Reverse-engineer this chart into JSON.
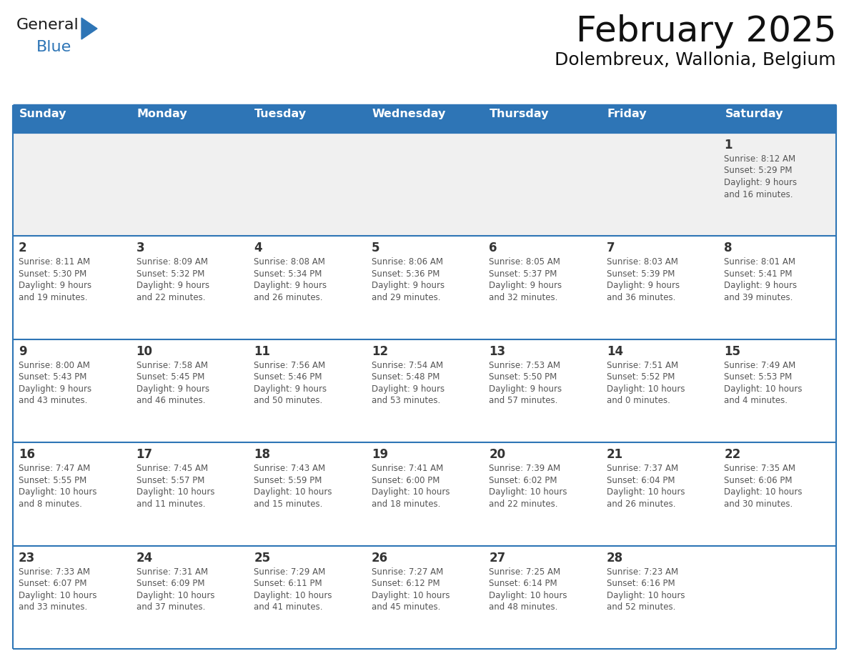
{
  "title": "February 2025",
  "subtitle": "Dolembreux, Wallonia, Belgium",
  "header_bg": "#2E75B6",
  "header_text_color": "#FFFFFF",
  "row_bg_gray": "#F0F0F0",
  "row_bg_white": "#FFFFFF",
  "border_color": "#2E75B6",
  "day_num_color": "#333333",
  "text_color": "#555555",
  "days_of_week": [
    "Sunday",
    "Monday",
    "Tuesday",
    "Wednesday",
    "Thursday",
    "Friday",
    "Saturday"
  ],
  "logo_general_color": "#1a1a1a",
  "logo_blue_color": "#2E75B6",
  "calendar_data": [
    [
      null,
      null,
      null,
      null,
      null,
      null,
      {
        "day": 1,
        "sunrise": "8:12 AM",
        "sunset": "5:29 PM",
        "daylight": "9 hours and 16 minutes."
      }
    ],
    [
      {
        "day": 2,
        "sunrise": "8:11 AM",
        "sunset": "5:30 PM",
        "daylight": "9 hours and 19 minutes."
      },
      {
        "day": 3,
        "sunrise": "8:09 AM",
        "sunset": "5:32 PM",
        "daylight": "9 hours and 22 minutes."
      },
      {
        "day": 4,
        "sunrise": "8:08 AM",
        "sunset": "5:34 PM",
        "daylight": "9 hours and 26 minutes."
      },
      {
        "day": 5,
        "sunrise": "8:06 AM",
        "sunset": "5:36 PM",
        "daylight": "9 hours and 29 minutes."
      },
      {
        "day": 6,
        "sunrise": "8:05 AM",
        "sunset": "5:37 PM",
        "daylight": "9 hours and 32 minutes."
      },
      {
        "day": 7,
        "sunrise": "8:03 AM",
        "sunset": "5:39 PM",
        "daylight": "9 hours and 36 minutes."
      },
      {
        "day": 8,
        "sunrise": "8:01 AM",
        "sunset": "5:41 PM",
        "daylight": "9 hours and 39 minutes."
      }
    ],
    [
      {
        "day": 9,
        "sunrise": "8:00 AM",
        "sunset": "5:43 PM",
        "daylight": "9 hours and 43 minutes."
      },
      {
        "day": 10,
        "sunrise": "7:58 AM",
        "sunset": "5:45 PM",
        "daylight": "9 hours and 46 minutes."
      },
      {
        "day": 11,
        "sunrise": "7:56 AM",
        "sunset": "5:46 PM",
        "daylight": "9 hours and 50 minutes."
      },
      {
        "day": 12,
        "sunrise": "7:54 AM",
        "sunset": "5:48 PM",
        "daylight": "9 hours and 53 minutes."
      },
      {
        "day": 13,
        "sunrise": "7:53 AM",
        "sunset": "5:50 PM",
        "daylight": "9 hours and 57 minutes."
      },
      {
        "day": 14,
        "sunrise": "7:51 AM",
        "sunset": "5:52 PM",
        "daylight": "10 hours and 0 minutes."
      },
      {
        "day": 15,
        "sunrise": "7:49 AM",
        "sunset": "5:53 PM",
        "daylight": "10 hours and 4 minutes."
      }
    ],
    [
      {
        "day": 16,
        "sunrise": "7:47 AM",
        "sunset": "5:55 PM",
        "daylight": "10 hours and 8 minutes."
      },
      {
        "day": 17,
        "sunrise": "7:45 AM",
        "sunset": "5:57 PM",
        "daylight": "10 hours and 11 minutes."
      },
      {
        "day": 18,
        "sunrise": "7:43 AM",
        "sunset": "5:59 PM",
        "daylight": "10 hours and 15 minutes."
      },
      {
        "day": 19,
        "sunrise": "7:41 AM",
        "sunset": "6:00 PM",
        "daylight": "10 hours and 18 minutes."
      },
      {
        "day": 20,
        "sunrise": "7:39 AM",
        "sunset": "6:02 PM",
        "daylight": "10 hours and 22 minutes."
      },
      {
        "day": 21,
        "sunrise": "7:37 AM",
        "sunset": "6:04 PM",
        "daylight": "10 hours and 26 minutes."
      },
      {
        "day": 22,
        "sunrise": "7:35 AM",
        "sunset": "6:06 PM",
        "daylight": "10 hours and 30 minutes."
      }
    ],
    [
      {
        "day": 23,
        "sunrise": "7:33 AM",
        "sunset": "6:07 PM",
        "daylight": "10 hours and 33 minutes."
      },
      {
        "day": 24,
        "sunrise": "7:31 AM",
        "sunset": "6:09 PM",
        "daylight": "10 hours and 37 minutes."
      },
      {
        "day": 25,
        "sunrise": "7:29 AM",
        "sunset": "6:11 PM",
        "daylight": "10 hours and 41 minutes."
      },
      {
        "day": 26,
        "sunrise": "7:27 AM",
        "sunset": "6:12 PM",
        "daylight": "10 hours and 45 minutes."
      },
      {
        "day": 27,
        "sunrise": "7:25 AM",
        "sunset": "6:14 PM",
        "daylight": "10 hours and 48 minutes."
      },
      {
        "day": 28,
        "sunrise": "7:23 AM",
        "sunset": "6:16 PM",
        "daylight": "10 hours and 52 minutes."
      },
      null
    ]
  ]
}
